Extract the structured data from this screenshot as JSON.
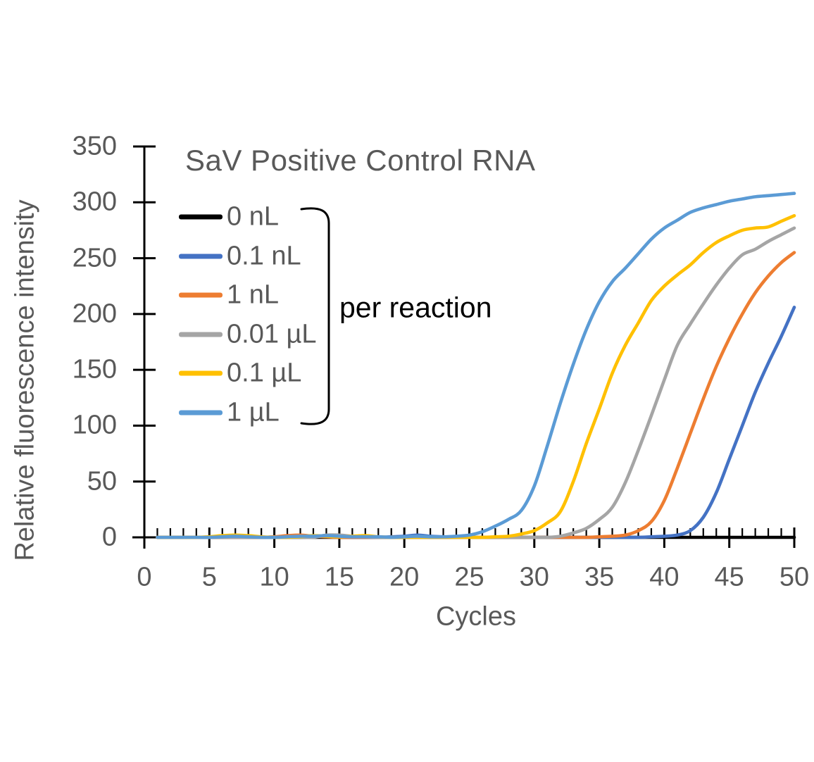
{
  "chart_data": {
    "type": "line",
    "title": "SaV Positive Control RNA",
    "xlabel": "Cycles",
    "ylabel": "Relative fluorescence intensity",
    "legend_note": "per reaction",
    "legend_position": "inside top-left",
    "grid": false,
    "xlim": [
      0,
      50
    ],
    "ylim": [
      0,
      350
    ],
    "x_ticks": [
      0,
      5,
      10,
      15,
      20,
      25,
      30,
      35,
      40,
      45,
      50
    ],
    "y_ticks": [
      0,
      50,
      100,
      150,
      200,
      250,
      300,
      350
    ],
    "x_minor_tick_step": 1,
    "axis_color": "#000000",
    "text_color": "#595959",
    "x": [
      1,
      2,
      3,
      4,
      5,
      6,
      7,
      8,
      9,
      10,
      11,
      12,
      13,
      14,
      15,
      16,
      17,
      18,
      19,
      20,
      21,
      22,
      23,
      24,
      25,
      26,
      27,
      28,
      29,
      30,
      31,
      32,
      33,
      34,
      35,
      36,
      37,
      38,
      39,
      40,
      41,
      42,
      43,
      44,
      45,
      46,
      47,
      48,
      49,
      50
    ],
    "series": [
      {
        "name": "0 nL",
        "color": "#000000",
        "values": [
          0,
          0,
          0,
          0,
          0,
          0,
          0,
          0,
          0,
          0,
          0,
          0,
          0,
          0,
          0,
          0,
          0,
          0,
          0,
          0,
          0,
          0,
          0,
          0,
          0,
          0,
          0,
          0,
          0,
          0,
          0,
          0,
          0,
          0,
          0,
          0,
          0,
          0,
          0,
          0,
          0,
          0,
          0,
          0,
          0,
          0,
          0,
          0,
          0,
          0
        ]
      },
      {
        "name": "0.1 nL",
        "color": "#4472C4",
        "values": [
          0,
          0,
          0,
          0,
          0,
          0,
          0,
          0,
          0,
          0,
          0,
          0,
          0.5,
          1,
          0.5,
          0,
          0,
          0,
          0.5,
          1,
          2,
          1,
          0.5,
          0,
          0,
          0,
          0,
          0,
          0,
          0,
          0,
          0,
          0,
          0,
          0,
          0,
          0,
          0,
          0.5,
          1,
          2,
          6,
          18,
          40,
          70,
          100,
          130,
          156,
          180,
          206
        ]
      },
      {
        "name": "1 nL",
        "color": "#ED7D31",
        "values": [
          0,
          0,
          0,
          0,
          0,
          0,
          0,
          0,
          0,
          0.5,
          1.5,
          2,
          1,
          0.5,
          0,
          0,
          0,
          0,
          0,
          0,
          0,
          0,
          0,
          0,
          0,
          0,
          0,
          0,
          0,
          0,
          0,
          0,
          0,
          0,
          0.5,
          1,
          2,
          6,
          14,
          33,
          62,
          93,
          124,
          153,
          178,
          200,
          219,
          234,
          246,
          255
        ]
      },
      {
        "name": "0.01 µL",
        "color": "#A5A5A5",
        "values": [
          0,
          0,
          0,
          0,
          0,
          0,
          0,
          0,
          0,
          0,
          0,
          0,
          0,
          2,
          2,
          1,
          0.5,
          0,
          0,
          0,
          0,
          0,
          0,
          0,
          0,
          0,
          0,
          0,
          0,
          0,
          0,
          1,
          4,
          8,
          16,
          27,
          49,
          78,
          109,
          141,
          172,
          191,
          209,
          226,
          241,
          253,
          258,
          265,
          271,
          277
        ]
      },
      {
        "name": "0.1 µL",
        "color": "#FFC000",
        "values": [
          0,
          0,
          0,
          0,
          0.5,
          1.5,
          2,
          1.5,
          0.5,
          0,
          0,
          0.5,
          1.5,
          1,
          0.5,
          1,
          1.5,
          0.5,
          0,
          0,
          0,
          0,
          0,
          0,
          0,
          0,
          0.5,
          1,
          3,
          6,
          13,
          23,
          50,
          84,
          115,
          147,
          172,
          192,
          212,
          225,
          235,
          244,
          255,
          264,
          270,
          275,
          277,
          278,
          283,
          288
        ]
      },
      {
        "name": "1 µL",
        "color": "#5B9BD5",
        "values": [
          0,
          0,
          0,
          0,
          0,
          0.5,
          1,
          0.5,
          0,
          0,
          0.5,
          1,
          1,
          1.5,
          1,
          0.5,
          0.5,
          0.5,
          0,
          0.5,
          1,
          0.5,
          0.5,
          1,
          2,
          5,
          10,
          16,
          24,
          46,
          82,
          120,
          155,
          186,
          211,
          229,
          241,
          254,
          267,
          277,
          284,
          291,
          295,
          298,
          301,
          303,
          305,
          306,
          307,
          308
        ]
      }
    ]
  }
}
